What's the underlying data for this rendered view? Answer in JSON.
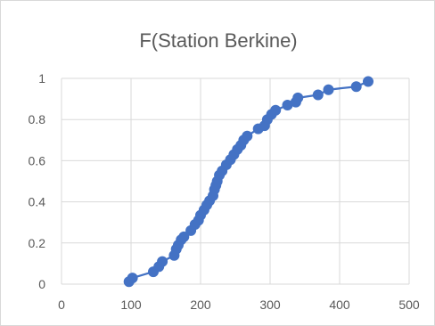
{
  "chart_data": {
    "type": "line",
    "title": "F(Station Berkine)",
    "xlabel": "",
    "ylabel": "",
    "xlim": [
      0,
      500
    ],
    "ylim": [
      0,
      1
    ],
    "x_ticks": [
      0,
      100,
      200,
      300,
      400,
      500
    ],
    "y_ticks": [
      0,
      0.2,
      0.4,
      0.6,
      0.8,
      1
    ],
    "x_tick_labels": [
      "0",
      "100",
      "200",
      "300",
      "400",
      "500"
    ],
    "y_tick_labels": [
      "0",
      "0.2",
      "0.4",
      "0.6",
      "0.8",
      "1"
    ],
    "grid": {
      "horizontal": true,
      "vertical": true
    },
    "legend": "none",
    "series_color": "#4472c4",
    "grid_color": "#d9d9d9",
    "series": [
      {
        "markers": true,
        "points": [
          [
            97,
            0.012
          ],
          [
            102,
            0.03
          ],
          [
            132,
            0.06
          ],
          [
            140,
            0.085
          ],
          [
            145,
            0.11
          ],
          [
            162,
            0.14
          ],
          [
            165,
            0.17
          ],
          [
            168,
            0.19
          ],
          [
            172,
            0.215
          ],
          [
            176,
            0.23
          ],
          [
            186,
            0.26
          ],
          [
            192,
            0.29
          ],
          [
            197,
            0.31
          ],
          [
            200,
            0.335
          ],
          [
            205,
            0.36
          ],
          [
            209,
            0.385
          ],
          [
            213,
            0.405
          ],
          [
            218,
            0.43
          ],
          [
            220,
            0.46
          ],
          [
            222,
            0.48
          ],
          [
            224,
            0.5
          ],
          [
            227,
            0.53
          ],
          [
            231,
            0.55
          ],
          [
            237,
            0.58
          ],
          [
            243,
            0.605
          ],
          [
            248,
            0.63
          ],
          [
            253,
            0.655
          ],
          [
            258,
            0.675
          ],
          [
            262,
            0.7
          ],
          [
            267,
            0.72
          ],
          [
            283,
            0.755
          ],
          [
            292,
            0.77
          ],
          [
            296,
            0.8
          ],
          [
            302,
            0.825
          ],
          [
            308,
            0.845
          ],
          [
            325,
            0.87
          ],
          [
            337,
            0.885
          ],
          [
            340,
            0.905
          ],
          [
            369,
            0.92
          ],
          [
            384,
            0.945
          ],
          [
            424,
            0.96
          ],
          [
            441,
            0.985
          ]
        ]
      }
    ]
  }
}
